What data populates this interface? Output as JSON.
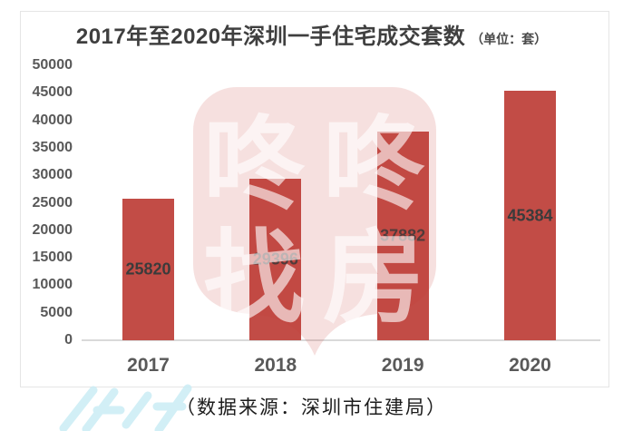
{
  "title": {
    "main": "2017年至2020年深圳一手住宅成交套数",
    "unit": "（单位：套）"
  },
  "source_caption": "（数据来源：深圳市住建局）",
  "watermark": {
    "chars": [
      "咚",
      "咚",
      "找",
      "房"
    ],
    "badge_color": "#C63E37",
    "text_color": "#FFFFFF"
  },
  "chart_data": {
    "type": "bar",
    "title": "2017年至2020年深圳一手住宅成交套数",
    "unit_label": "（单位：套）",
    "categories": [
      "2017",
      "2018",
      "2019",
      "2020"
    ],
    "values": [
      25820,
      29396,
      37882,
      45384
    ],
    "value_labels": [
      "25820",
      "29396",
      "37882",
      "45384"
    ],
    "xlabel": "",
    "ylabel": "",
    "ylim": [
      0,
      50000
    ],
    "ytick_interval": 5000,
    "yticks": [
      "50000",
      "45000",
      "40000",
      "35000",
      "30000",
      "25000",
      "20000",
      "15000",
      "10000",
      "5000",
      "0"
    ],
    "grid": false,
    "legend": false,
    "bar_color": "#C24C46",
    "source": "（数据来源：深圳市住建局）"
  },
  "colors": {
    "background": "#FFFFFF",
    "frame_border": "#E5E5E5",
    "axis_line": "#D9D9D9",
    "title_text": "#3F3F3F",
    "tick_text": "#595959",
    "value_text": "#3B3B3B",
    "caption_text": "#1C1C1C",
    "corner_watermark": "#CBEDF5"
  }
}
